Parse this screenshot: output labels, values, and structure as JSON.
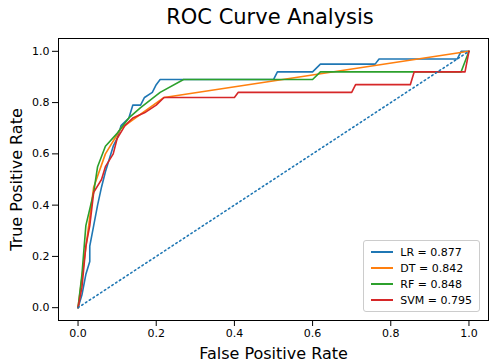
{
  "chart_data": {
    "type": "line",
    "title": "ROC Curve Analysis",
    "x_label": "False Positive Rate",
    "y_label": "True Positive Rate",
    "xlim": [
      -0.05,
      1.05
    ],
    "ylim": [
      -0.05,
      1.05
    ],
    "xticks": [
      {
        "value": 0,
        "label": "0.0"
      },
      {
        "value": 0.2,
        "label": "0.2"
      },
      {
        "value": 0.4,
        "label": "0.4"
      },
      {
        "value": 0.6,
        "label": "0.6"
      },
      {
        "value": 0.8,
        "label": "0.8"
      },
      {
        "value": 1,
        "label": "1.0"
      }
    ],
    "yticks": [
      {
        "value": 0,
        "label": "0.0"
      },
      {
        "value": 0.2,
        "label": "0.2"
      },
      {
        "value": 0.4,
        "label": "0.4"
      },
      {
        "value": 0.6,
        "label": "0.6"
      },
      {
        "value": 0.8,
        "label": "0.8"
      },
      {
        "value": 1,
        "label": "1.0"
      }
    ],
    "grid": false,
    "legend": "lower right",
    "series": [
      {
        "name": "LR = 0.877",
        "color": "#1f77b4",
        "line_style": "solid",
        "x": [
          0,
          0.01,
          0.02,
          0.03,
          0.03,
          0.04,
          0.05,
          0.06,
          0.07,
          0.08,
          0.09,
          0.1,
          0.11,
          0.13,
          0.14,
          0.16,
          0.17,
          0.19,
          0.2,
          0.21,
          0.5,
          0.51,
          0.6,
          0.62,
          0.76,
          0.77,
          0.97,
          0.98,
          1.0
        ],
        "values": [
          0,
          0.05,
          0.13,
          0.18,
          0.24,
          0.32,
          0.4,
          0.47,
          0.53,
          0.58,
          0.63,
          0.66,
          0.71,
          0.74,
          0.79,
          0.79,
          0.82,
          0.84,
          0.87,
          0.89,
          0.89,
          0.92,
          0.92,
          0.95,
          0.95,
          0.97,
          0.97,
          1.0,
          1.0
        ]
      },
      {
        "name": "DT = 0.842",
        "color": "#ff7f0e",
        "line_style": "solid",
        "x": [
          0,
          0.04,
          0.07,
          0.11,
          0.22,
          1.0
        ],
        "values": [
          0,
          0.47,
          0.6,
          0.7,
          0.82,
          1.0
        ]
      },
      {
        "name": "RF = 0.848",
        "color": "#2ca02c",
        "line_style": "solid",
        "x": [
          0,
          0.01,
          0.02,
          0.04,
          0.05,
          0.07,
          0.1,
          0.13,
          0.16,
          0.21,
          0.27,
          0.6,
          0.62,
          0.98,
          1.0
        ],
        "values": [
          0,
          0.13,
          0.32,
          0.45,
          0.55,
          0.63,
          0.68,
          0.74,
          0.78,
          0.84,
          0.89,
          0.89,
          0.92,
          0.92,
          1.0
        ]
      },
      {
        "name": "SVM = 0.795",
        "color": "#d62728",
        "line_style": "solid",
        "x": [
          0,
          0.01,
          0.02,
          0.03,
          0.04,
          0.06,
          0.07,
          0.09,
          0.1,
          0.12,
          0.14,
          0.17,
          0.2,
          0.22,
          0.4,
          0.41,
          0.7,
          0.71,
          0.85,
          0.86,
          0.99,
          1.0
        ],
        "values": [
          0,
          0.08,
          0.24,
          0.32,
          0.45,
          0.5,
          0.55,
          0.6,
          0.66,
          0.71,
          0.74,
          0.76,
          0.79,
          0.82,
          0.82,
          0.84,
          0.84,
          0.87,
          0.87,
          0.92,
          0.92,
          1.0
        ]
      },
      {
        "color": "#1f77b4",
        "line_style": "dotted",
        "x": [
          0,
          1
        ],
        "values": [
          0,
          1
        ]
      }
    ]
  }
}
